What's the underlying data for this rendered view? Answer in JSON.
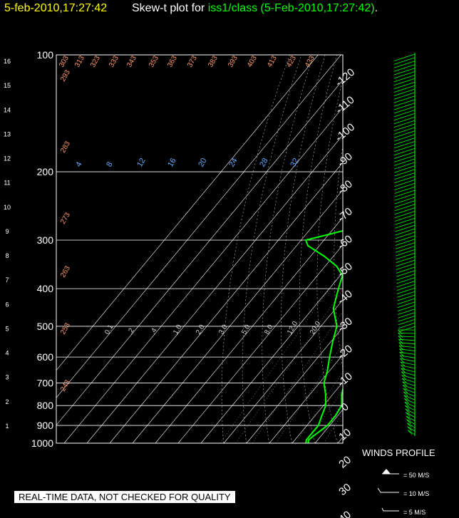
{
  "header": {
    "date_label": "5-feb-2010,17:27:42",
    "plot_prefix": "Skew-t plot for",
    "station": "iss1/class (5-Feb-2010,17:27:42)",
    "suffix": "."
  },
  "footer": {
    "quality_note": "REAL-TIME DATA, NOT CHECKED FOR QUALITY"
  },
  "winds": {
    "title": "WINDS PROFILE",
    "legend": [
      "= 50 M/S",
      "= 10 M/S",
      "= 5 M/S"
    ]
  },
  "colors": {
    "temperature": "#00ff00",
    "dewpoint": "#00ff00",
    "wind": "#00ff00",
    "mixing_ratio_label": "#66aaff",
    "theta_label": "#ff9966",
    "grid": "#ffffff",
    "header_date": "#ffff00"
  },
  "chart_data": {
    "type": "line",
    "title": "Skew-t plot for iss1/class (5-Feb-2010,17:27:42)",
    "pressure_levels": [
      100,
      200,
      300,
      400,
      500,
      600,
      700,
      800,
      900,
      1000
    ],
    "ylim": [
      1000,
      100
    ],
    "height_km_ticks": [
      "1",
      "2",
      "3",
      "4",
      "5",
      "6",
      "7",
      "8",
      "9",
      "10",
      "11",
      "12",
      "13",
      "14",
      "15",
      "16"
    ],
    "temperature_ticks": [
      "-120",
      "-110",
      "-100",
      "-90",
      "-80",
      "-70",
      "-60",
      "-50",
      "-40",
      "-30",
      "-20",
      "-10",
      "0",
      "10",
      "20",
      "30",
      "40"
    ],
    "mixing_ratio_labels_upper": [
      "4",
      "8",
      "12",
      "16",
      "20",
      "24",
      "28",
      "32"
    ],
    "mixing_ratio_labels_lower": [
      "0.1",
      ".2",
      ".4",
      "1.0",
      "2.0",
      "3.0",
      "5.0",
      "8.0",
      "12.0",
      "20.0"
    ],
    "theta_labels": [
      "303",
      "313",
      "323",
      "333",
      "343",
      "353",
      "363",
      "373",
      "383",
      "393",
      "403",
      "413",
      "423",
      "433",
      "293",
      "283",
      "273",
      "263",
      "253",
      "243"
    ],
    "series": [
      {
        "name": "Temperature",
        "points": [
          [
            1000,
            -3
          ],
          [
            980,
            -4
          ],
          [
            950,
            -3
          ],
          [
            900,
            -1
          ],
          [
            850,
            -1
          ],
          [
            800,
            -2
          ],
          [
            750,
            -6
          ],
          [
            700,
            -9
          ],
          [
            650,
            -13
          ],
          [
            600,
            -19
          ],
          [
            550,
            -23
          ],
          [
            500,
            -27
          ],
          [
            450,
            -32
          ],
          [
            400,
            -38
          ],
          [
            350,
            -45
          ],
          [
            300,
            -51
          ],
          [
            260,
            -56
          ],
          [
            240,
            -58
          ],
          [
            220,
            -60
          ],
          [
            200,
            -60
          ],
          [
            180,
            -59
          ],
          [
            160,
            -58
          ],
          [
            140,
            -57
          ],
          [
            120,
            -58
          ],
          [
            100,
            -59
          ]
        ]
      },
      {
        "name": "Dewpoint",
        "points": [
          [
            1000,
            -4
          ],
          [
            980,
            -5
          ],
          [
            950,
            -5
          ],
          [
            900,
            -5
          ],
          [
            850,
            -7
          ],
          [
            800,
            -9
          ],
          [
            750,
            -13
          ],
          [
            700,
            -18
          ],
          [
            650,
            -21
          ],
          [
            600,
            -25
          ],
          [
            550,
            -29
          ],
          [
            500,
            -33
          ],
          [
            450,
            -41
          ],
          [
            400,
            -46
          ],
          [
            370,
            -49
          ],
          [
            350,
            -55
          ],
          [
            330,
            -64
          ],
          [
            310,
            -75
          ],
          [
            300,
            -78
          ],
          [
            290,
            -70
          ],
          [
            280,
            -62
          ],
          [
            270,
            -64
          ],
          [
            260,
            -62
          ],
          [
            240,
            -66
          ],
          [
            225,
            -64
          ],
          [
            215,
            -70
          ],
          [
            205,
            -79
          ],
          [
            200,
            -83
          ],
          [
            190,
            -82
          ],
          [
            175,
            -82
          ],
          [
            160,
            -81
          ],
          [
            140,
            -80
          ],
          [
            120,
            -81
          ],
          [
            100,
            -83
          ]
        ]
      }
    ],
    "wind_profile": {
      "type": "wind_barbs",
      "direction_deg": 270,
      "speed_ms_surface": 10,
      "speed_ms_upper": 60
    }
  }
}
